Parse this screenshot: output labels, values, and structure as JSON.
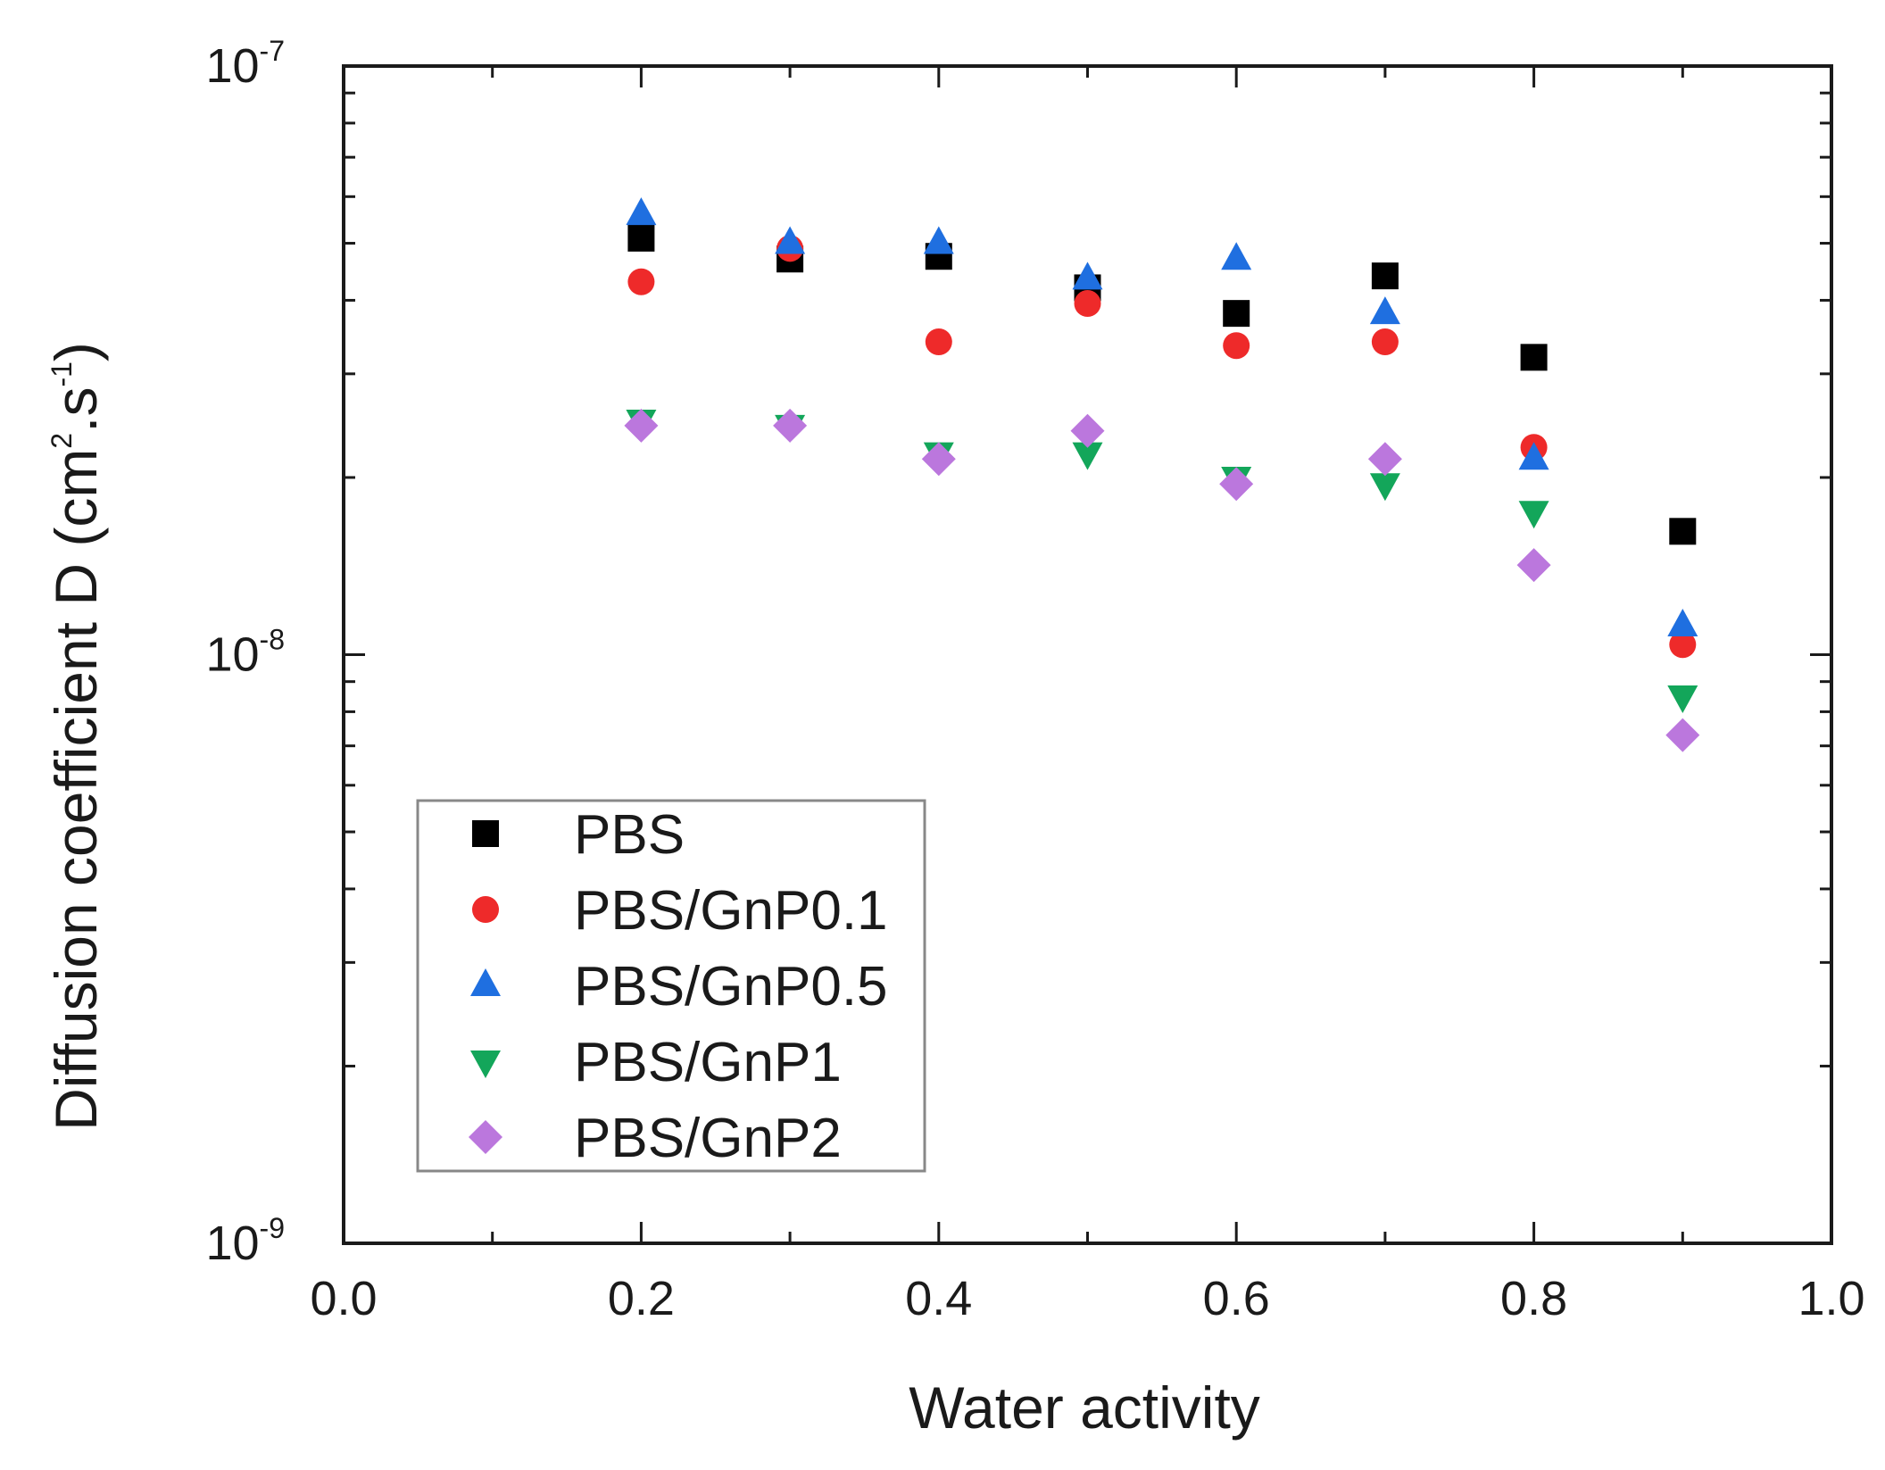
{
  "chart_data": {
    "type": "scatter",
    "title": "",
    "xlabel": "Water activity",
    "ylabel": {
      "main": "Diffusion coefficient D (cm",
      "sup1": "2",
      "mid": ".s",
      "sup2": "-1",
      "end": ")"
    },
    "xlim": [
      0.0,
      1.0
    ],
    "ylim": [
      1e-09,
      1e-07
    ],
    "yscale": "log",
    "x_ticks": [
      {
        "value": 0.0,
        "label": "0.0"
      },
      {
        "value": 0.2,
        "label": "0.2"
      },
      {
        "value": 0.4,
        "label": "0.4"
      },
      {
        "value": 0.6,
        "label": "0.6"
      },
      {
        "value": 0.8,
        "label": "0.8"
      },
      {
        "value": 1.0,
        "label": "1.0"
      }
    ],
    "y_ticks": [
      {
        "value": 1e-09,
        "base": "10",
        "exp": "-9"
      },
      {
        "value": 1e-08,
        "base": "10",
        "exp": "-8"
      },
      {
        "value": 1e-07,
        "base": "10",
        "exp": "-7"
      }
    ],
    "legend_position": "bottom-left",
    "series": [
      {
        "name": "PBS",
        "marker": "square",
        "color": "#000000",
        "points": [
          [
            0.2,
            5.1e-08
          ],
          [
            0.3,
            4.7e-08
          ],
          [
            0.4,
            4.75e-08
          ],
          [
            0.5,
            4.2e-08
          ],
          [
            0.6,
            3.8e-08
          ],
          [
            0.7,
            4.4e-08
          ],
          [
            0.8,
            3.2e-08
          ],
          [
            0.9,
            1.62e-08
          ]
        ]
      },
      {
        "name": "PBS/GnP0.1",
        "marker": "circle",
        "color": "#ee2a2a",
        "points": [
          [
            0.2,
            4.3e-08
          ],
          [
            0.3,
            4.9e-08
          ],
          [
            0.4,
            3.4e-08
          ],
          [
            0.5,
            3.95e-08
          ],
          [
            0.6,
            3.35e-08
          ],
          [
            0.7,
            3.4e-08
          ],
          [
            0.8,
            2.25e-08
          ],
          [
            0.9,
            1.04e-08
          ]
        ]
      },
      {
        "name": "PBS/GnP0.5",
        "marker": "triangle-up",
        "color": "#1f6fe0",
        "points": [
          [
            0.2,
            5.6e-08
          ],
          [
            0.3,
            5e-08
          ],
          [
            0.4,
            5e-08
          ],
          [
            0.5,
            4.35e-08
          ],
          [
            0.6,
            4.7e-08
          ],
          [
            0.7,
            3.8e-08
          ],
          [
            0.8,
            2.15e-08
          ],
          [
            0.9,
            1.12e-08
          ]
        ]
      },
      {
        "name": "PBS/GnP1",
        "marker": "triangle-down",
        "color": "#13a65a",
        "points": [
          [
            0.2,
            2.5e-08
          ],
          [
            0.3,
            2.45e-08
          ],
          [
            0.4,
            2.2e-08
          ],
          [
            0.5,
            2.2e-08
          ],
          [
            0.6,
            2e-08
          ],
          [
            0.7,
            1.95e-08
          ],
          [
            0.8,
            1.75e-08
          ],
          [
            0.9,
            8.5e-09
          ]
        ]
      },
      {
        "name": "PBS/GnP2",
        "marker": "diamond",
        "color": "#bb77dd",
        "points": [
          [
            0.2,
            2.45e-08
          ],
          [
            0.3,
            2.45e-08
          ],
          [
            0.4,
            2.15e-08
          ],
          [
            0.5,
            2.4e-08
          ],
          [
            0.6,
            1.95e-08
          ],
          [
            0.7,
            2.15e-08
          ],
          [
            0.8,
            1.42e-08
          ],
          [
            0.9,
            7.3e-09
          ]
        ]
      }
    ]
  }
}
